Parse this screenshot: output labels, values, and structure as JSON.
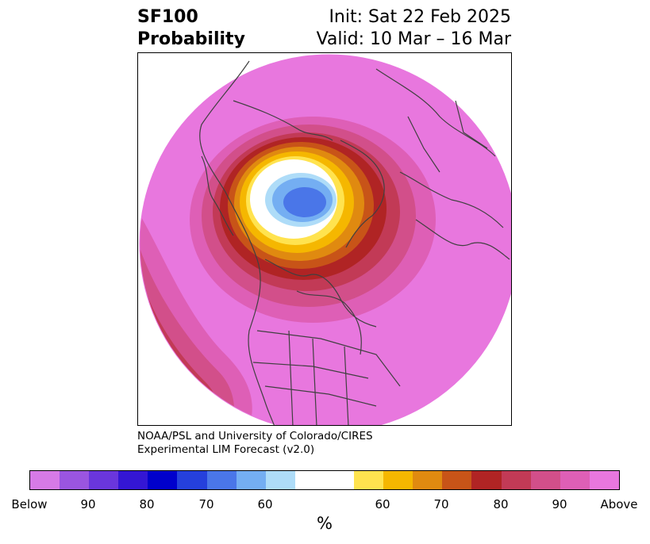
{
  "title": {
    "variable": "SF100",
    "product": "Probability",
    "init": "Init: Sat 22 Feb 2025",
    "valid": "Valid: 10 Mar – 16 Mar"
  },
  "credit": {
    "line1": "NOAA/PSL and University of Colorado/CIRES",
    "line2": "Experimental LIM Forecast (v2.0)"
  },
  "colorbar": {
    "colors": [
      "#d67ae6",
      "#9a55e0",
      "#6a36dc",
      "#3416d4",
      "#0000cc",
      "#2540dc",
      "#4a76e8",
      "#74aef2",
      "#aedcf8",
      "#ffffff",
      "#ffe34f",
      "#f5b700",
      "#e08a10",
      "#c85418",
      "#b02424",
      "#c23a56",
      "#d24f8a",
      "#de5fb6",
      "#e877de"
    ],
    "ticks": [
      "Below",
      "90",
      "80",
      "70",
      "60",
      "60",
      "70",
      "80",
      "90",
      "Above"
    ],
    "label": "%"
  }
}
